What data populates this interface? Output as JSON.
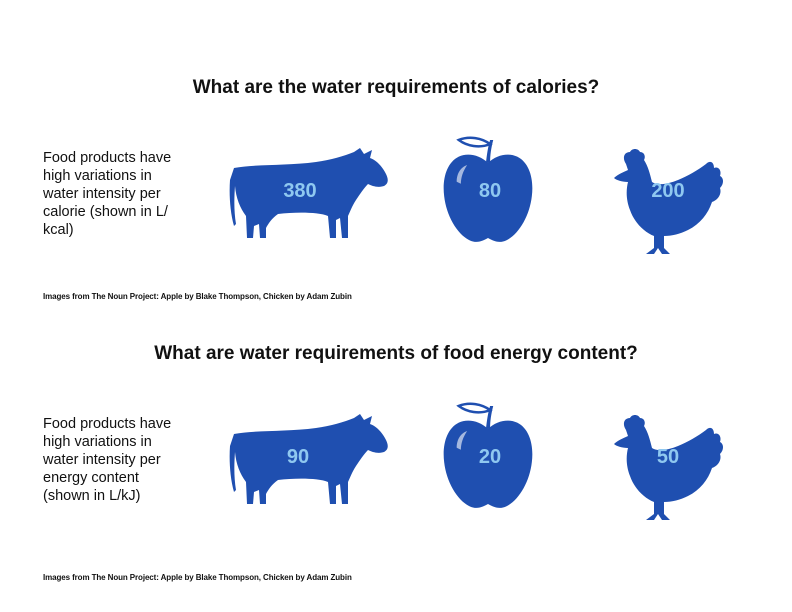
{
  "colors": {
    "icon": "#1f4fb0",
    "value_text": "#8fc8f0"
  },
  "sections": [
    {
      "title": "What are the water requirements of calories?",
      "description": [
        "Food products have",
        "high variations in",
        "water intensity per",
        "calorie (shown in L/",
        "kcal)"
      ],
      "items": [
        {
          "icon": "cow-icon",
          "value": "380"
        },
        {
          "icon": "apple-icon",
          "value": "80"
        },
        {
          "icon": "chicken-icon",
          "value": "200"
        }
      ],
      "credit": "Images from The Noun Project: Apple by Blake Thompson, Chicken by Adam Zubin"
    },
    {
      "title": "What are water requirements of food energy content?",
      "description": [
        "Food products have",
        "high variations in",
        "water intensity per",
        "energy content",
        "(shown in L/kJ)"
      ],
      "items": [
        {
          "icon": "cow-icon",
          "value": "90"
        },
        {
          "icon": "apple-icon",
          "value": "20"
        },
        {
          "icon": "chicken-icon",
          "value": "50"
        }
      ],
      "credit": "Images from The Noun Project: Apple by Blake Thompson, Chicken by Adam Zubin"
    }
  ]
}
